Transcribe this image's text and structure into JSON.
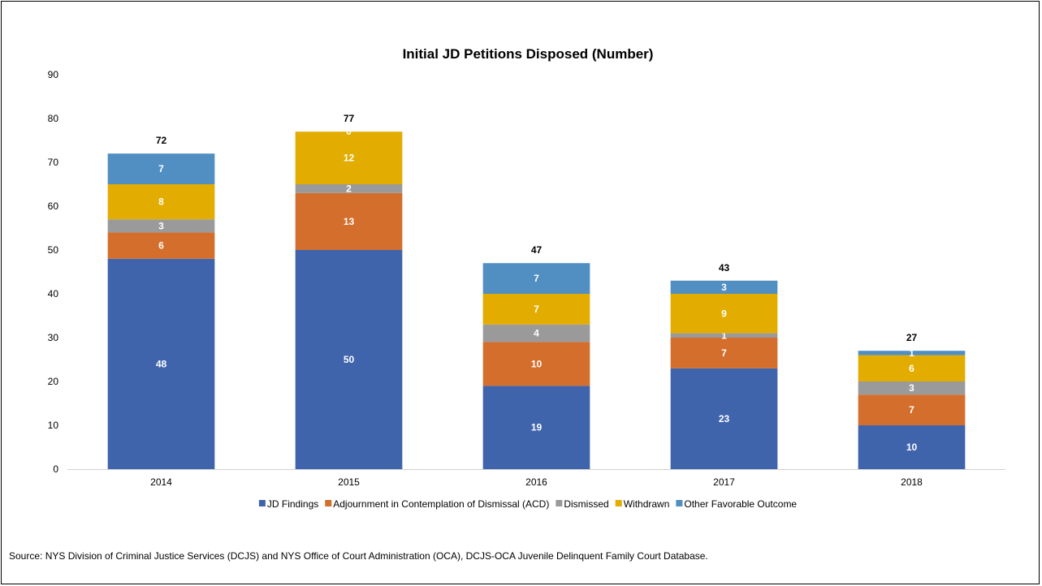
{
  "chart_data": {
    "type": "bar",
    "stacked": true,
    "title": "Initial JD Petitions Disposed (Number)",
    "categories": [
      "2014",
      "2015",
      "2016",
      "2017",
      "2018"
    ],
    "ylim": [
      0,
      90
    ],
    "yticks": [
      0,
      10,
      20,
      30,
      40,
      50,
      60,
      70,
      80,
      90
    ],
    "grid": false,
    "legend_position": "bottom",
    "series": [
      {
        "name": "JD Findings",
        "color": "#4064ac",
        "values": [
          48,
          50,
          19,
          23,
          10
        ]
      },
      {
        "name": "Adjournment in Contemplation of Dismissal (ACD)",
        "color": "#d46e2c",
        "values": [
          6,
          13,
          10,
          7,
          7
        ]
      },
      {
        "name": "Dismissed",
        "color": "#9a9a9a",
        "values": [
          3,
          2,
          4,
          1,
          3
        ]
      },
      {
        "name": "Withdrawn",
        "color": "#e2ac00",
        "values": [
          8,
          12,
          7,
          9,
          6
        ]
      },
      {
        "name": "Other Favorable Outcome",
        "color": "#518ec2",
        "values": [
          7,
          0,
          7,
          3,
          1
        ]
      }
    ],
    "totals": [
      72,
      77,
      47,
      43,
      27
    ]
  },
  "source_note": "Source: NYS Division of Criminal Justice Services (DCJS) and NYS Office of Court Administration (OCA), DCJS-OCA Juvenile Delinquent Family Court Database."
}
